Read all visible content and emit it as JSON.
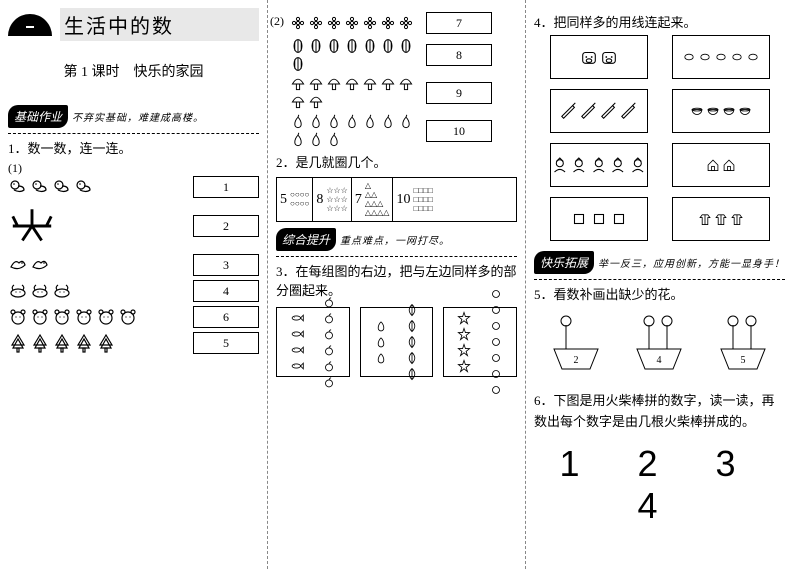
{
  "col1": {
    "unit_title": "生活中的数",
    "lesson_title": "第 1 课时　快乐的家园",
    "section_basic": {
      "badge": "基础作业",
      "sub": "不弃实基础，难建成高楼。"
    },
    "q1": "1．数一数，连一连。",
    "q1_sub": "(1)",
    "items": [
      {
        "count": 4,
        "icon": "duck",
        "num": "1"
      },
      {
        "count": 1,
        "icon": "plane",
        "num": "2"
      },
      {
        "count": 2,
        "icon": "bird",
        "num": "3"
      },
      {
        "count": 3,
        "icon": "cow",
        "num": "4"
      },
      {
        "count": 6,
        "icon": "bear",
        "num": "6"
      },
      {
        "count": 5,
        "icon": "tree",
        "num": "5"
      }
    ]
  },
  "col2": {
    "q1_sub2": "(2)",
    "items2": [
      {
        "count": 7,
        "icon": "flower",
        "num": "7"
      },
      {
        "count": 8,
        "icon": "melon",
        "num": "8"
      },
      {
        "count": 9,
        "icon": "mushroom",
        "num": "9"
      },
      {
        "count": 10,
        "icon": "pear",
        "num": "10"
      }
    ],
    "q2": "2．是几就圈几个。",
    "circles": [
      {
        "n": "5",
        "pattern": "○○○○\n○○○○"
      },
      {
        "n": "8",
        "pattern": "☆☆☆\n☆☆☆\n☆☆☆"
      },
      {
        "n": "7",
        "pattern": "△\n△△\n△△△\n△△△△"
      },
      {
        "n": "10",
        "pattern": "□□□□\n□□□□\n□□□□"
      }
    ],
    "section_comp": {
      "badge": "综合提升",
      "sub": "重点难点，一网打尽。"
    },
    "q3": "3．在每组图的右边，把与左边同样多的部分圈起来。",
    "groups": [
      {
        "left_icon": "fish",
        "left_n": 4,
        "right_icon": "apple",
        "right_n": 6
      },
      {
        "left_icon": "pear2",
        "left_n": 3,
        "right_icon": "leaf",
        "right_n": 5
      },
      {
        "left_icon": "star",
        "left_n": 4,
        "right_icon": "circ",
        "right_n": 7
      }
    ]
  },
  "col3": {
    "q4": "4．把同样多的用线连起来。",
    "pairs_left": [
      {
        "icon": "pig",
        "n": 2
      },
      {
        "icon": "pen",
        "n": 4
      },
      {
        "icon": "santa",
        "n": 5
      },
      {
        "icon": "sq",
        "n": 3
      }
    ],
    "pairs_right": [
      {
        "icon": "ring",
        "n": 5
      },
      {
        "icon": "bowl",
        "n": 4
      },
      {
        "icon": "house",
        "n": 2
      },
      {
        "icon": "coat",
        "n": 3
      }
    ],
    "section_ext": {
      "badge": "快乐拓展",
      "sub": "举一反三，应用创新，方能一显身手！"
    },
    "q5": "5．看数补画出缺少的花。",
    "pots": [
      {
        "flowers": 1,
        "label": "2"
      },
      {
        "flowers": 2,
        "label": "4"
      },
      {
        "flowers": 2,
        "label": "5"
      }
    ],
    "q6": "6．下图是用火柴棒拼的数字，读一读，再数出每个数字是由几根火柴棒拼成的。",
    "match_digits": "1 2 3 4"
  },
  "colors": {
    "fg": "#000000",
    "bg": "#ffffff",
    "shade": "#e8e8e8"
  }
}
